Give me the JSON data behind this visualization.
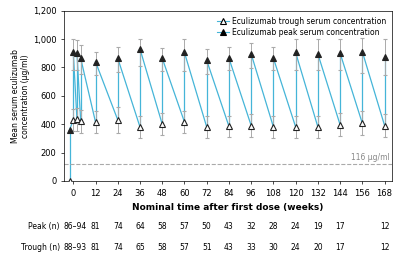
{
  "xlabel": "Nominal time after first dose (weeks)",
  "ylabel": "Mean serum eculizumab\nconcentration (μg/ml)",
  "ylim": [
    0,
    1200
  ],
  "yticks": [
    0,
    200,
    400,
    600,
    800,
    1000,
    1200
  ],
  "ytick_labels": [
    "0",
    "200",
    "400",
    "600",
    "800",
    "1,000",
    "1,200"
  ],
  "dashed_line_y": 116,
  "dashed_label": "116 μg/ml",
  "line_color": "#45b5d8",
  "peak_color": "#222222",
  "trough_color": "#222222",
  "legend_trough": "Eculizumab trough serum concentration",
  "legend_peak": "Eculizumab peak serum concentration",
  "trough_x": [
    -2,
    0,
    2,
    4,
    12,
    24,
    36,
    48,
    60,
    72,
    84,
    96,
    108,
    120,
    132,
    144,
    156,
    168
  ],
  "trough_y": [
    0,
    430,
    435,
    420,
    415,
    430,
    380,
    400,
    415,
    380,
    385,
    390,
    380,
    380,
    380,
    395,
    405,
    390
  ],
  "trough_err_lo": [
    0,
    80,
    80,
    80,
    80,
    90,
    80,
    80,
    80,
    75,
    75,
    80,
    75,
    75,
    75,
    80,
    85,
    80
  ],
  "trough_err_hi": [
    0,
    80,
    80,
    80,
    80,
    90,
    80,
    80,
    80,
    75,
    75,
    80,
    75,
    75,
    75,
    80,
    85,
    80
  ],
  "peak_x": [
    -2,
    0,
    2,
    4,
    12,
    24,
    36,
    48,
    60,
    72,
    84,
    96,
    108,
    120,
    132,
    144,
    156,
    168
  ],
  "peak_y": [
    360,
    905,
    900,
    865,
    840,
    865,
    930,
    865,
    905,
    850,
    865,
    895,
    865,
    905,
    895,
    900,
    910,
    875
  ],
  "peak_err_lo": [
    0,
    120,
    120,
    115,
    95,
    100,
    120,
    90,
    130,
    95,
    80,
    100,
    85,
    120,
    115,
    115,
    150,
    130
  ],
  "peak_err_hi": [
    0,
    95,
    95,
    90,
    70,
    80,
    70,
    75,
    95,
    80,
    80,
    80,
    80,
    95,
    105,
    100,
    100,
    125
  ],
  "xticks": [
    0,
    12,
    24,
    36,
    48,
    60,
    72,
    84,
    96,
    108,
    120,
    132,
    144,
    156,
    168
  ],
  "xlim": [
    -5,
    172
  ],
  "table_labels": [
    "Peak (n)",
    "Trough (n)"
  ],
  "table_col_headers": [
    "86–94",
    "81",
    "74",
    "64",
    "58",
    "57",
    "50",
    "43",
    "32",
    "28",
    "24",
    "19",
    "17",
    "12"
  ],
  "table_trough": [
    "88–93",
    "81",
    "74",
    "65",
    "58",
    "57",
    "51",
    "43",
    "33",
    "30",
    "24",
    "20",
    "17",
    "12"
  ]
}
